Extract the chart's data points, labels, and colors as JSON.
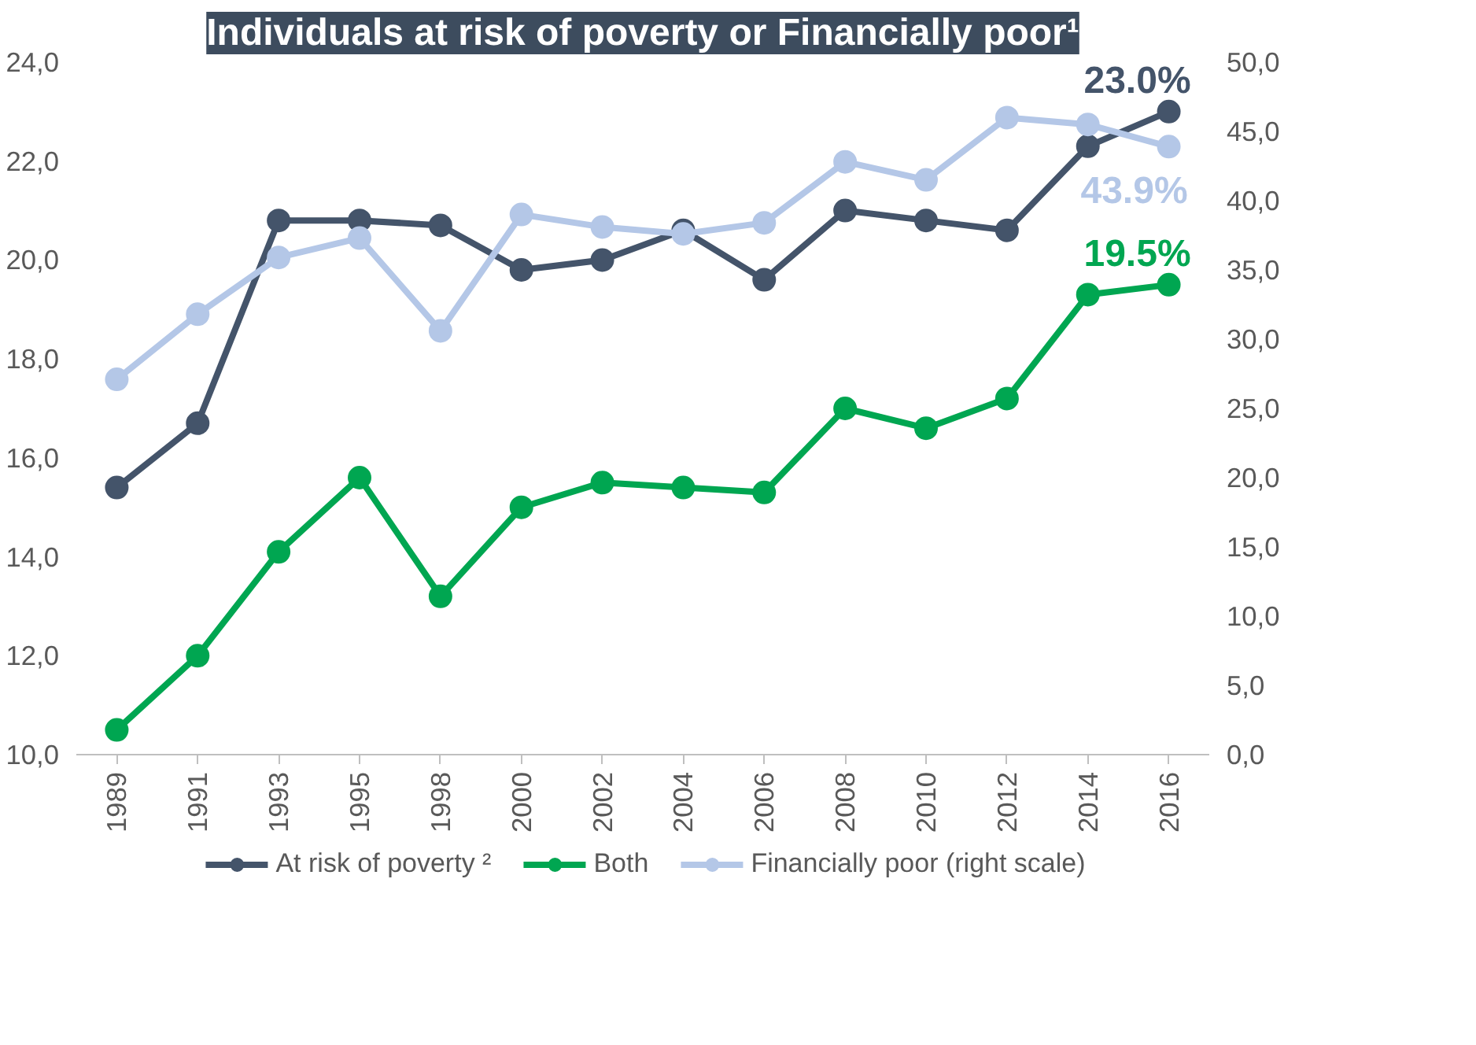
{
  "chart_data": {
    "type": "line",
    "title": "Individuals at risk of poverty or Financially poor¹",
    "categories": [
      "1989",
      "1991",
      "1993",
      "1995",
      "1998",
      "2000",
      "2002",
      "2004",
      "2006",
      "2008",
      "2010",
      "2012",
      "2014",
      "2016"
    ],
    "series": [
      {
        "name": "At risk of poverty ²",
        "color": "#44546a",
        "values": [
          15.4,
          16.7,
          20.8,
          20.8,
          20.7,
          19.8,
          20.0,
          20.6,
          19.6,
          21.0,
          20.8,
          20.6,
          22.3,
          23.0
        ],
        "value_labels": [
          null,
          null,
          null,
          null,
          null,
          null,
          null,
          null,
          null,
          null,
          null,
          null,
          null,
          "23.0%"
        ]
      },
      {
        "name": "Both",
        "color": "#00a651",
        "values": [
          10.5,
          12.0,
          14.1,
          15.6,
          13.2,
          15.0,
          15.5,
          15.4,
          15.3,
          17.0,
          16.6,
          17.2,
          19.3,
          19.5
        ],
        "value_labels": [
          null,
          null,
          null,
          null,
          null,
          null,
          null,
          null,
          null,
          null,
          null,
          null,
          null,
          "19.5%"
        ]
      },
      {
        "name": "Financially poor (right scale)",
        "color": "#b4c7e7",
        "axis": "y2",
        "values": [
          27.1,
          31.8,
          35.9,
          37.3,
          30.6,
          39.0,
          38.1,
          37.6,
          38.4,
          42.8,
          41.5,
          46.0,
          45.5,
          43.9
        ],
        "value_labels": [
          null,
          null,
          null,
          null,
          null,
          null,
          null,
          null,
          null,
          null,
          null,
          null,
          null,
          "43.9%"
        ]
      }
    ],
    "ylim": [
      10,
      24
    ],
    "yticks": [
      {
        "value": 10,
        "label": "10,0"
      },
      {
        "value": 12,
        "label": "12,0"
      },
      {
        "value": 14,
        "label": "14,0"
      },
      {
        "value": 16,
        "label": "16,0"
      },
      {
        "value": 18,
        "label": "18,0"
      },
      {
        "value": 20,
        "label": "20,0"
      },
      {
        "value": 22,
        "label": "22,0"
      },
      {
        "value": 24,
        "label": "24,0"
      }
    ],
    "y2lim": [
      0,
      50
    ],
    "y2ticks": [
      {
        "value": 0,
        "label": "0,0"
      },
      {
        "value": 5,
        "label": "5,0"
      },
      {
        "value": 10,
        "label": "10,0"
      },
      {
        "value": 15,
        "label": "15,0"
      },
      {
        "value": 20,
        "label": "20,0"
      },
      {
        "value": 25,
        "label": "25,0"
      },
      {
        "value": 30,
        "label": "30,0"
      },
      {
        "value": 35,
        "label": "35,0"
      },
      {
        "value": 40,
        "label": "40,0"
      },
      {
        "value": 45,
        "label": "45,0"
      },
      {
        "value": 50,
        "label": "50,0"
      }
    ],
    "grid": false,
    "legend": "bottom",
    "marker": "circle",
    "line_style": "solid"
  }
}
